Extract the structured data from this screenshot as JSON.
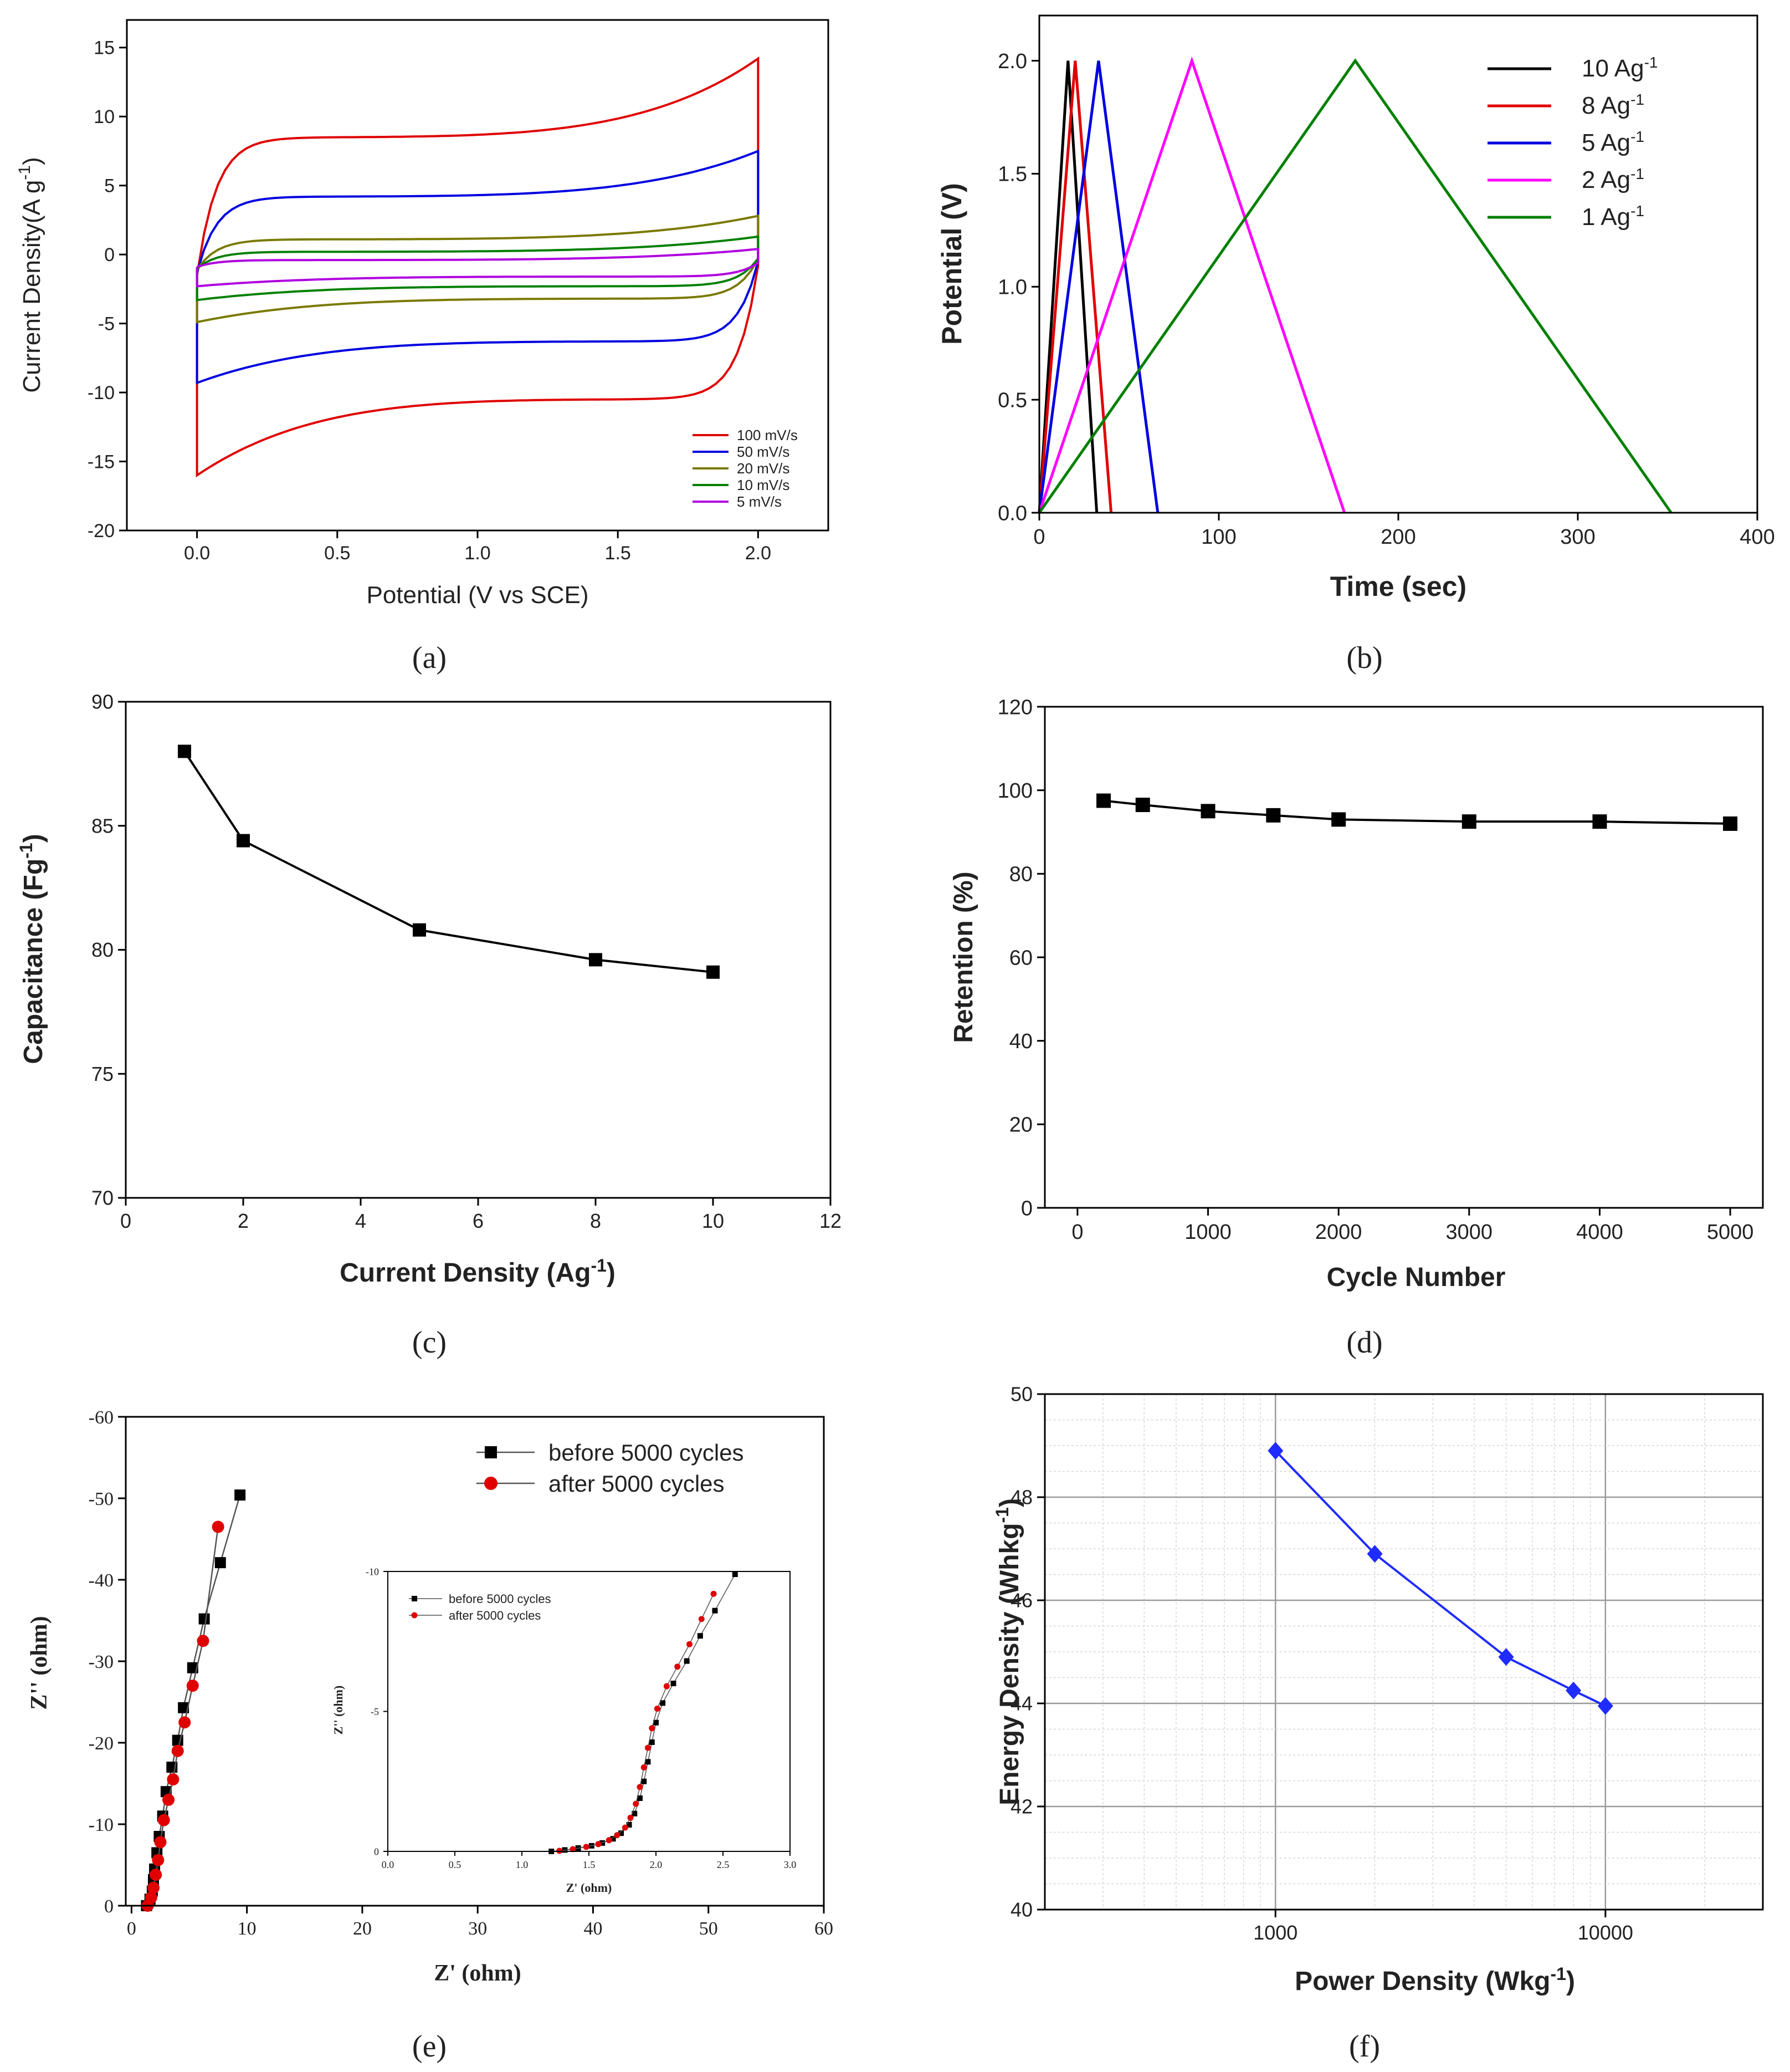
{
  "colors": {
    "red": "#e00000",
    "blue": "#0000e0",
    "olive": "#7a7a00",
    "green": "#008000",
    "magenta": "#ff00ff",
    "violet": "#b000e0",
    "black": "#000000",
    "marker_blue": "#1f2bff"
  },
  "chart_data": [
    {
      "id": "a",
      "panel_label": "(a)",
      "type": "line",
      "subtype": "cyclic-voltammetry",
      "xlabel": "Potential (V vs SCE)",
      "ylabel": "Current Density(A g",
      "ylabel_sup": "-1",
      "ylabel_close": ")",
      "xlim": [
        -0.25,
        2.25
      ],
      "ylim": [
        -20,
        17
      ],
      "xticks": [
        "0.0",
        "0.5",
        "1.0",
        "1.5",
        "2.0"
      ],
      "yticks": [
        "-20",
        "-15",
        "-10",
        "-5",
        "0",
        "5",
        "10",
        "15"
      ],
      "legend_position": "bottom-right",
      "series": [
        {
          "name": "100 mV/s",
          "color": "red",
          "anodic_start": -1.5,
          "anodic_plateau": 8.5,
          "anodic_end": 14.2,
          "cathodic_end": -0.8,
          "cathodic_plateau": -10.5,
          "cathodic_start": -16.0
        },
        {
          "name": "50 mV/s",
          "color": "blue",
          "anodic_start": -1.3,
          "anodic_plateau": 4.2,
          "anodic_end": 7.5,
          "cathodic_end": -0.5,
          "cathodic_plateau": -6.3,
          "cathodic_start": -9.3
        },
        {
          "name": "20 mV/s",
          "color": "olive",
          "anodic_start": -1.1,
          "anodic_plateau": 1.1,
          "anodic_end": 2.8,
          "cathodic_end": -0.3,
          "cathodic_plateau": -3.2,
          "cathodic_start": -4.9
        },
        {
          "name": "10 mV/s",
          "color": "green",
          "anodic_start": -1.0,
          "anodic_plateau": 0.2,
          "anodic_end": 1.3,
          "cathodic_end": -0.3,
          "cathodic_plateau": -2.3,
          "cathodic_start": -3.3
        },
        {
          "name": "5 mV/s",
          "color": "violet",
          "anodic_start": -0.9,
          "anodic_plateau": -0.4,
          "anodic_end": 0.4,
          "cathodic_end": -0.6,
          "cathodic_plateau": -1.6,
          "cathodic_start": -2.3
        }
      ]
    },
    {
      "id": "b",
      "panel_label": "(b)",
      "type": "line",
      "subtype": "galvanostatic-charge-discharge",
      "xlabel": "Time (sec)",
      "ylabel": "Potential (V)",
      "xlim": [
        0,
        400
      ],
      "ylim": [
        0,
        2.2
      ],
      "xticks": [
        "0",
        "100",
        "200",
        "300",
        "400"
      ],
      "yticks": [
        "0.0",
        "0.5",
        "1.0",
        "1.5",
        "2.0"
      ],
      "legend_position": "top-right",
      "series": [
        {
          "name": "10 Ag",
          "sup": "-1",
          "color": "black",
          "t_peak": 16,
          "t_end": 32
        },
        {
          "name": "8 Ag",
          "sup": "-1",
          "color": "red",
          "t_peak": 20,
          "t_end": 40
        },
        {
          "name": "5 Ag",
          "sup": "-1",
          "color": "blue",
          "t_peak": 33,
          "t_end": 66
        },
        {
          "name": "2 Ag",
          "sup": "-1",
          "color": "magenta",
          "t_peak": 85,
          "t_end": 170
        },
        {
          "name": "1 Ag",
          "sup": "-1",
          "color": "green",
          "t_peak": 176,
          "t_end": 352
        }
      ]
    },
    {
      "id": "c",
      "panel_label": "(c)",
      "type": "line",
      "xlabel": "Current Density (Ag",
      "xlabel_sup": "-1",
      "xlabel_close": ")",
      "ylabel": "Capacitance (Fg",
      "ylabel_sup": "-1",
      "ylabel_close": ")",
      "xlim": [
        0,
        12
      ],
      "ylim": [
        70,
        90
      ],
      "xticks": [
        "0",
        "2",
        "4",
        "6",
        "8",
        "10",
        "12"
      ],
      "yticks": [
        "70",
        "75",
        "80",
        "85",
        "90"
      ],
      "x": [
        1,
        2,
        5,
        8,
        10
      ],
      "y": [
        88.0,
        84.4,
        80.8,
        79.6,
        79.1
      ]
    },
    {
      "id": "d",
      "panel_label": "(d)",
      "type": "line",
      "xlabel": "Cycle Number",
      "ylabel": "Retention (%)",
      "xlim": [
        -250,
        5250
      ],
      "ylim": [
        0,
        120
      ],
      "xticks": [
        "0",
        "1000",
        "2000",
        "3000",
        "4000",
        "5000"
      ],
      "yticks": [
        "0",
        "20",
        "40",
        "60",
        "80",
        "100",
        "120"
      ],
      "x": [
        200,
        500,
        1000,
        1500,
        2000,
        3000,
        4000,
        5000
      ],
      "y": [
        97.5,
        96.5,
        95.0,
        94.0,
        93.0,
        92.5,
        92.5,
        92.0
      ]
    },
    {
      "id": "e",
      "panel_label": "(e)",
      "type": "scatter",
      "subtype": "nyquist",
      "xlabel": "Z' (ohm)",
      "ylabel": "Z'' (ohm)",
      "xlim": [
        -0.5,
        60
      ],
      "ylim": [
        0,
        -60
      ],
      "xticks": [
        "0",
        "10",
        "20",
        "30",
        "40",
        "50",
        "60"
      ],
      "yticks": [
        "0",
        "-10",
        "-20",
        "-30",
        "-40",
        "-50",
        "-60"
      ],
      "legend_position": "top-right",
      "series": [
        {
          "name": "before 5000 cycles",
          "color": "black",
          "marker": "square",
          "x": [
            1.3,
            1.6,
            1.8,
            1.9,
            2.0,
            2.2,
            2.4,
            2.7,
            3.0,
            3.5,
            4.0,
            4.5,
            5.3,
            6.3,
            7.7,
            9.4
          ],
          "y": [
            0,
            -0.8,
            -1.8,
            -3.2,
            -4.5,
            -6.5,
            -8.5,
            -11,
            -14,
            -17,
            -20.3,
            -24.3,
            -29.2,
            -35.2,
            -42.1,
            -50.4
          ]
        },
        {
          "name": "after 5000 cycles",
          "color": "red",
          "marker": "circle",
          "x": [
            1.4,
            1.7,
            1.9,
            2.1,
            2.3,
            2.5,
            2.8,
            3.2,
            3.6,
            4.0,
            4.6,
            5.3,
            6.2,
            7.5
          ],
          "y": [
            0,
            -1.0,
            -2.2,
            -3.8,
            -5.6,
            -7.8,
            -10.5,
            -13.0,
            -15.5,
            -19.0,
            -22.5,
            -27.0,
            -32.5,
            -46.5
          ]
        }
      ],
      "inset": {
        "xlabel": "Z' (ohm)",
        "ylabel": "Z'' (ohm)",
        "xlim": [
          0,
          3
        ],
        "ylim": [
          0,
          -10
        ],
        "xticks": [
          "0.0",
          "0.5",
          "1.0",
          "1.5",
          "2.0",
          "2.5",
          "3.0"
        ],
        "yticks": [
          "0",
          "-5",
          "-10"
        ],
        "series": [
          {
            "name": "before 5000 cycles",
            "color": "black",
            "marker": "square",
            "x": [
              1.22,
              1.32,
              1.42,
              1.52,
              1.6,
              1.68,
              1.74,
              1.8,
              1.84,
              1.88,
              1.91,
              1.94,
              1.97,
              2.0,
              2.05,
              2.13,
              2.23,
              2.33,
              2.44,
              2.59
            ],
            "y": [
              0,
              -0.05,
              -0.12,
              -0.2,
              -0.3,
              -0.45,
              -0.65,
              -0.95,
              -1.35,
              -1.9,
              -2.5,
              -3.2,
              -3.9,
              -4.6,
              -5.3,
              -6.0,
              -6.8,
              -7.7,
              -8.6,
              -9.9
            ]
          },
          {
            "name": "after 5000 cycles",
            "color": "red",
            "marker": "circle",
            "x": [
              1.28,
              1.38,
              1.48,
              1.57,
              1.65,
              1.71,
              1.77,
              1.81,
              1.85,
              1.88,
              1.91,
              1.94,
              1.97,
              2.01,
              2.08,
              2.16,
              2.25,
              2.34,
              2.43
            ],
            "y": [
              -0.02,
              -0.08,
              -0.16,
              -0.26,
              -0.4,
              -0.58,
              -0.85,
              -1.2,
              -1.7,
              -2.3,
              -3.0,
              -3.7,
              -4.4,
              -5.1,
              -5.9,
              -6.6,
              -7.4,
              -8.3,
              -9.2
            ]
          }
        ]
      }
    },
    {
      "id": "f",
      "panel_label": "(f)",
      "type": "line",
      "scale": "log-x",
      "xlabel": "Power Density (Wkg",
      "xlabel_sup": "-1",
      "xlabel_close": ")",
      "ylabel": "Energy Density (Whkg",
      "ylabel_sup": "-1",
      "ylabel_close": ")",
      "xlim": [
        200,
        30000
      ],
      "ylim": [
        40,
        50
      ],
      "xticks": [
        "1000",
        "10000"
      ],
      "yticks": [
        "40",
        "42",
        "44",
        "46",
        "48",
        "50"
      ],
      "grid": true,
      "x": [
        1000,
        2000,
        5000,
        8000,
        10000
      ],
      "y": [
        48.9,
        46.9,
        44.9,
        44.25,
        43.95
      ]
    }
  ]
}
